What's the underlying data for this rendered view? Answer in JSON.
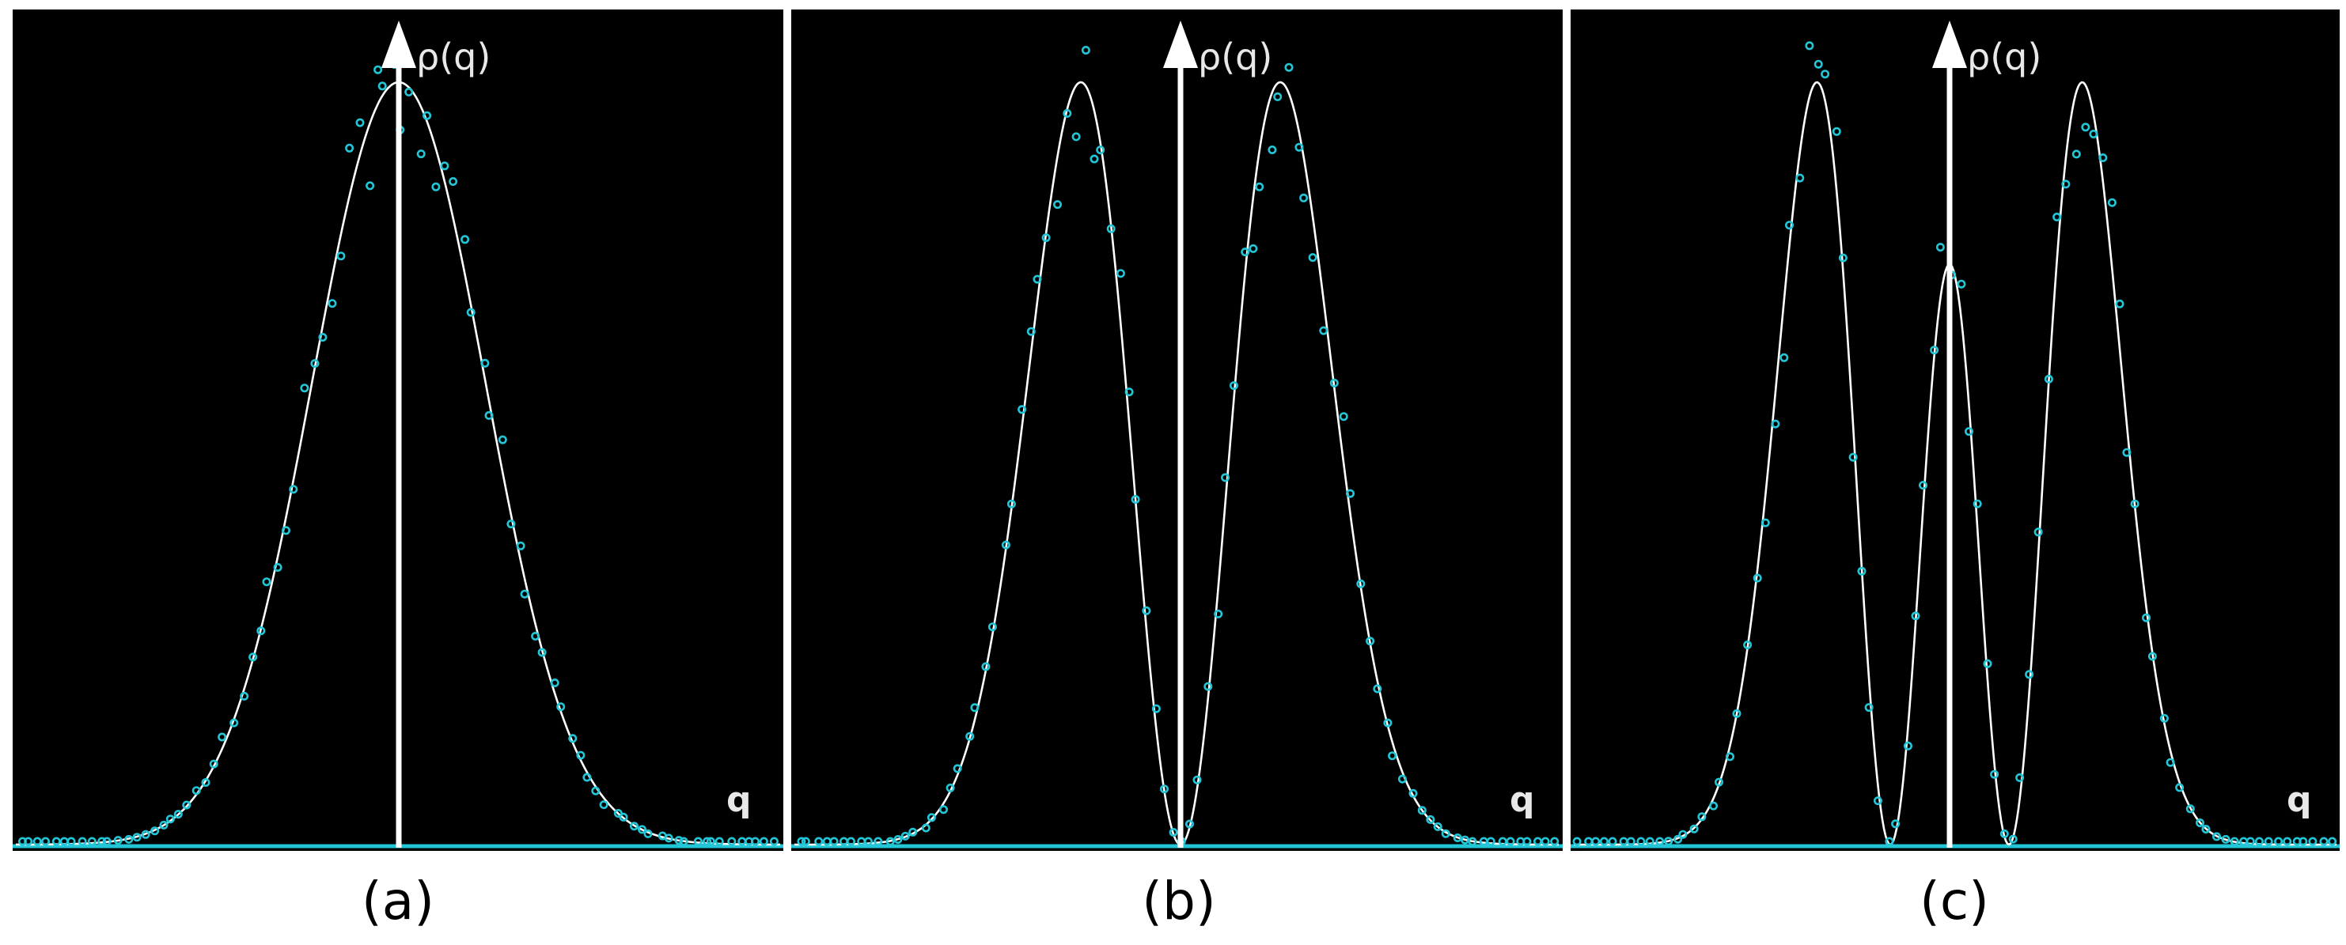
{
  "chart_data": [
    {
      "type": "line",
      "panel_label": "(a)",
      "ylabel": "ρ(q)",
      "xlabel": "q",
      "nodes": 0,
      "series": [
        {
          "role": "analytic curve",
          "style": "solid white line"
        },
        {
          "role": "simulation samples",
          "style": "cyan open circles"
        }
      ]
    },
    {
      "type": "line",
      "panel_label": "(b)",
      "ylabel": "ρ(q)",
      "xlabel": "q",
      "nodes": 1,
      "series": [
        {
          "role": "analytic curve",
          "style": "solid white line"
        },
        {
          "role": "simulation samples",
          "style": "cyan open circles"
        }
      ]
    },
    {
      "type": "line",
      "panel_label": "(c)",
      "ylabel": "ρ(q)",
      "xlabel": "q",
      "nodes": 2,
      "series": [
        {
          "role": "analytic curve",
          "style": "solid white line"
        },
        {
          "role": "simulation samples",
          "style": "cyan open circles"
        }
      ]
    }
  ],
  "colors": {
    "background": "#000000",
    "curve": "#ffffff",
    "points": "#22c6d6",
    "caption": "#000000"
  }
}
